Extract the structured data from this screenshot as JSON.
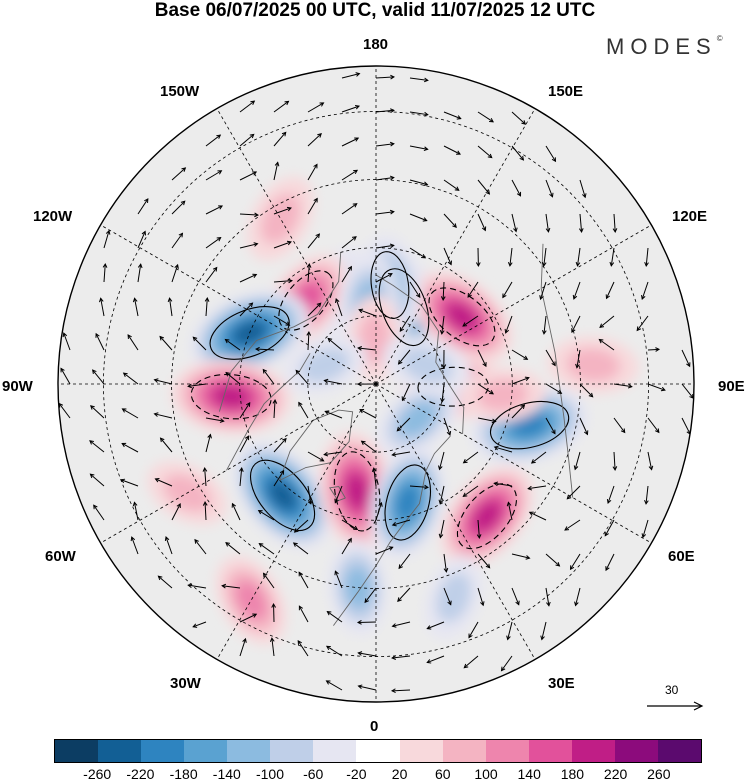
{
  "title": "Base 06/07/2025 00 UTC, valid 11/07/2025 12 UTC",
  "brand": "MODES",
  "brand_mark": "©",
  "longitude_labels": {
    "top": "180",
    "bottom": "0",
    "left": "90W",
    "right": "90E",
    "upper_left_1": "150W",
    "upper_left_2": "120W",
    "lower_left_1": "60W",
    "lower_left_2": "30W",
    "upper_right_1": "150E",
    "upper_right_2": "120E",
    "lower_right_1": "60E",
    "lower_right_2": "30E"
  },
  "reference_vector": {
    "label": "30"
  },
  "colorbar": {
    "colors": [
      "#0c3d63",
      "#125f95",
      "#2e84c0",
      "#5aa2d1",
      "#8cbbe0",
      "#bfcfe8",
      "#e6e6f2",
      "#ffffff",
      "#f8d9dc",
      "#f4b4c2",
      "#ee85ad",
      "#e2519b",
      "#c01e86",
      "#8c0b7c",
      "#5b0a6e"
    ],
    "ticks": [
      "-260",
      "-220",
      "-180",
      "-140",
      "-100",
      "-60",
      "-20",
      "20",
      "60",
      "100",
      "140",
      "180",
      "220",
      "260"
    ]
  },
  "anomalies": [
    {
      "lon": 160,
      "lat": 72,
      "value": -200
    },
    {
      "lon": 128,
      "lat": 66,
      "value": 180
    },
    {
      "lon": 172,
      "lat": 68,
      "value": -120
    },
    {
      "lon": -158,
      "lat": 68,
      "value": -80
    },
    {
      "lon": -140,
      "lat": 66,
      "value": 140
    },
    {
      "lon": -175,
      "lat": 72,
      "value": -100
    },
    {
      "lon": -178,
      "lat": 80,
      "value": 60
    },
    {
      "lon": -112,
      "lat": 60,
      "value": -220
    },
    {
      "lon": -85,
      "lat": 58,
      "value": 200
    },
    {
      "lon": -110,
      "lat": 78,
      "value": -60
    },
    {
      "lon": -40,
      "lat": 58,
      "value": -220
    },
    {
      "lon": -10,
      "lat": 66,
      "value": 200
    },
    {
      "lon": 15,
      "lat": 63,
      "value": -180
    },
    {
      "lon": 40,
      "lat": 52,
      "value": 180
    },
    {
      "lon": 75,
      "lat": 55,
      "value": -200
    },
    {
      "lon": 88,
      "lat": 73,
      "value": 140
    },
    {
      "lon": 50,
      "lat": 78,
      "value": -100
    },
    {
      "lon": 110,
      "lat": 78,
      "value": -80
    },
    {
      "lon": 85,
      "lat": 62,
      "value": 60
    },
    {
      "lon": -30,
      "lat": 35,
      "value": 100
    },
    {
      "lon": 20,
      "lat": 40,
      "value": -60
    },
    {
      "lon": -150,
      "lat": 48,
      "value": 80
    },
    {
      "lon": -60,
      "lat": 42,
      "value": 60
    },
    {
      "lon": 95,
      "lat": 42,
      "value": 80
    },
    {
      "lon": -5,
      "lat": 45,
      "value": -100
    }
  ]
}
